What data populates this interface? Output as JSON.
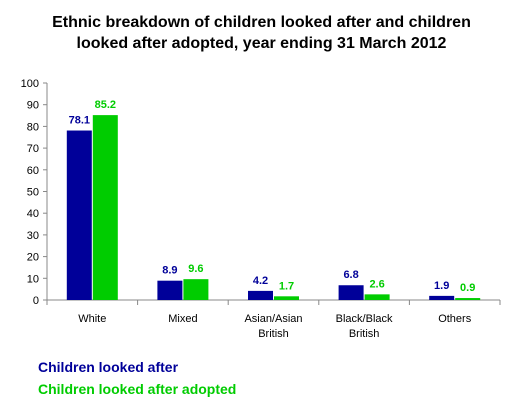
{
  "chart_data": {
    "type": "bar",
    "title": "Ethnic breakdown of children looked after and children\nlooked after adopted, year ending 31 March 2012",
    "categories": [
      [
        "White"
      ],
      [
        "Mixed"
      ],
      [
        "Asian/Asian",
        "British"
      ],
      [
        "Black/Black",
        "British"
      ],
      [
        "Others"
      ]
    ],
    "series": [
      {
        "name": "Children looked after",
        "values": [
          78.1,
          8.9,
          4.2,
          6.8,
          1.9
        ],
        "color": "#000099"
      },
      {
        "name": "Children looked after adopted",
        "values": [
          85.2,
          9.6,
          1.7,
          2.6,
          0.9
        ],
        "color": "#00cc00"
      }
    ],
    "ylim": [
      0,
      100
    ],
    "yticks": [
      0,
      10,
      20,
      30,
      40,
      50,
      60,
      70,
      80,
      90,
      100
    ],
    "grid": false,
    "legend_position": "bottom-left"
  }
}
